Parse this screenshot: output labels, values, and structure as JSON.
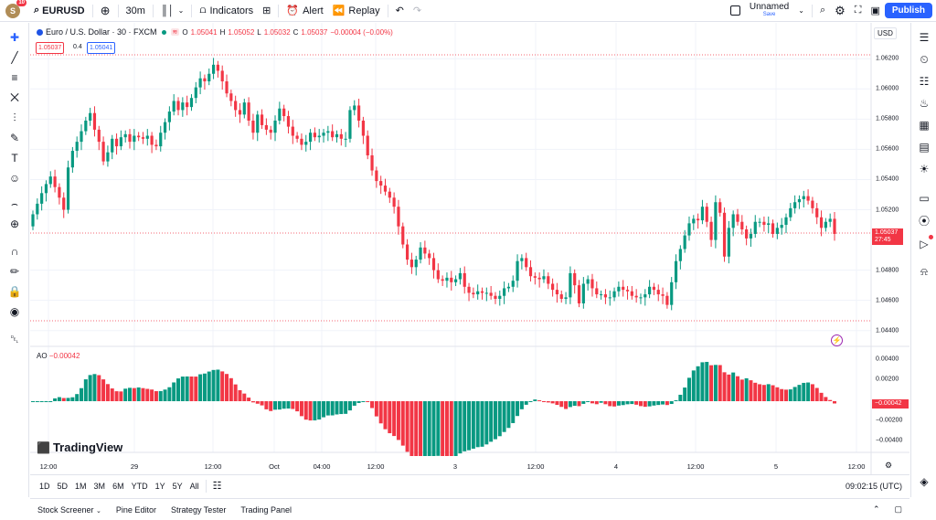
{
  "topbar": {
    "avatar_letter": "S",
    "notifications": "10",
    "symbol": "EURUSD",
    "interval": "30m",
    "indicators": "Indicators",
    "alert": "Alert",
    "replay": "Replay",
    "layout_name": "Unnamed",
    "layout_status": "Save",
    "publish": "Publish"
  },
  "legend": {
    "name": "Euro / U.S. Dollar · 30 · FXCM",
    "o_label": "O",
    "o": "1.05041",
    "h_label": "H",
    "h": "1.05052",
    "l_label": "L",
    "l": "1.05032",
    "c_label": "C",
    "c": "1.05037",
    "change": "−0.00004 (−0.00%)",
    "bid": "1.05037",
    "spread": "0.4",
    "ask": "1.05041"
  },
  "price_scale": {
    "currency": "USD",
    "labels": [
      "1.06200",
      "1.06000",
      "1.05800",
      "1.05600",
      "1.05400",
      "1.05200",
      "1.04800",
      "1.04600",
      "1.04400"
    ],
    "current": "1.05037",
    "countdown": "27:45"
  },
  "ao": {
    "label": "AO",
    "value": "−0.00042",
    "labels": [
      "0.00400",
      "0.00200",
      "−0.00200",
      "−0.00400"
    ],
    "current": "−0.00042"
  },
  "time_axis": [
    "12:00",
    "29",
    "12:00",
    "Oct",
    "04:00",
    "12:00",
    "3",
    "12:00",
    "4",
    "12:00",
    "5",
    "12:00"
  ],
  "branding": "TradingView",
  "timeframes": [
    "1D",
    "5D",
    "1M",
    "3M",
    "6M",
    "YTD",
    "1Y",
    "5Y",
    "All"
  ],
  "clock": "09:02:15 (UTC)",
  "panels": [
    "Stock Screener",
    "Pine Editor",
    "Strategy Tester",
    "Trading Panel"
  ],
  "colors": {
    "up": "#089981",
    "down": "#f23645",
    "accent": "#2962ff"
  },
  "chart_data": {
    "type": "candlestick",
    "symbol": "EURUSD",
    "timeframe": "30",
    "ylim": [
      1.0435,
      1.0628
    ],
    "close": [
      1.0517,
      1.0524,
      1.0531,
      1.0537,
      1.0542,
      1.0535,
      1.0528,
      1.052,
      1.0548,
      1.0559,
      1.0565,
      1.0572,
      1.0579,
      1.0584,
      1.0573,
      1.0565,
      1.0552,
      1.0558,
      1.0567,
      1.0562,
      1.0568,
      1.057,
      1.0565,
      1.0569,
      1.0568,
      1.0567,
      1.0569,
      1.0563,
      1.0562,
      1.0571,
      1.0578,
      1.0585,
      1.0592,
      1.0586,
      1.0591,
      1.0588,
      1.0594,
      1.0601,
      1.0607,
      1.0605,
      1.061,
      1.0616,
      1.0612,
      1.0605,
      1.0597,
      1.0592,
      1.0586,
      1.0583,
      1.0591,
      1.0579,
      1.0571,
      1.0583,
      1.0576,
      1.0573,
      1.0571,
      1.0579,
      1.0587,
      1.0582,
      1.0575,
      1.0569,
      1.0567,
      1.0563,
      1.0565,
      1.0571,
      1.0568,
      1.0569,
      1.0571,
      1.0572,
      1.0568,
      1.057,
      1.0567,
      1.0567,
      1.0586,
      1.0589,
      1.0579,
      1.0569,
      1.0556,
      1.0546,
      1.0539,
      1.0536,
      1.0532,
      1.0528,
      1.0522,
      1.0509,
      1.0497,
      1.0487,
      1.0482,
      1.0487,
      1.0495,
      1.0491,
      1.0488,
      1.048,
      1.0474,
      1.0473,
      1.0475,
      1.0472,
      1.0474,
      1.0478,
      1.0469,
      1.0465,
      1.0464,
      1.0466,
      1.0465,
      1.0465,
      1.0463,
      1.0461,
      1.0463,
      1.0468,
      1.0469,
      1.0473,
      1.0486,
      1.0488,
      1.0482,
      1.0476,
      1.0475,
      1.0474,
      1.0476,
      1.0471,
      1.0467,
      1.0464,
      1.0461,
      1.0462,
      1.0478,
      1.047,
      1.0458,
      1.0471,
      1.0474,
      1.0468,
      1.0464,
      1.0464,
      1.0462,
      1.0462,
      1.0466,
      1.0469,
      1.0467,
      1.0466,
      1.0463,
      1.0462,
      1.0462,
      1.0464,
      1.0469,
      1.0467,
      1.0464,
      1.0463,
      1.0457,
      1.0472,
      1.0486,
      1.0494,
      1.0503,
      1.0511,
      1.0514,
      1.0513,
      1.0522,
      1.0512,
      1.05,
      1.0525,
      1.0518,
      1.0489,
      1.0508,
      1.0517,
      1.0512,
      1.0507,
      1.0501,
      1.0504,
      1.0512,
      1.0512,
      1.051,
      1.0511,
      1.0504,
      1.0508,
      1.051,
      1.0515,
      1.0521,
      1.0525,
      1.0527,
      1.0529,
      1.0526,
      1.0521,
      1.0515,
      1.0508,
      1.0512,
      1.0514,
      1.0504
    ]
  }
}
